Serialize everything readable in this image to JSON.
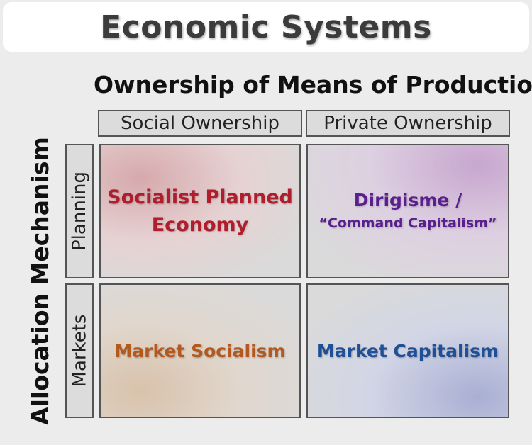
{
  "title": "Economic Systems",
  "axes": {
    "columns_label": "Ownership of Means of Production",
    "rows_label": "Allocation Mechanism"
  },
  "columns": [
    "Social Ownership",
    "Private Ownership"
  ],
  "rows": [
    "Planning",
    "Markets"
  ],
  "cells": {
    "social_planning": {
      "line1": "Socialist Planned",
      "line2": "Economy",
      "color": "#b01e2e"
    },
    "private_planning": {
      "line1": "Dirigisme /",
      "line2": "“Command Capitalism”",
      "color": "#5a1f8e"
    },
    "social_markets": {
      "label": "Market Socialism",
      "color": "#b4581e"
    },
    "private_markets": {
      "label": "Market Capitalism",
      "color": "#1f4f96"
    }
  }
}
